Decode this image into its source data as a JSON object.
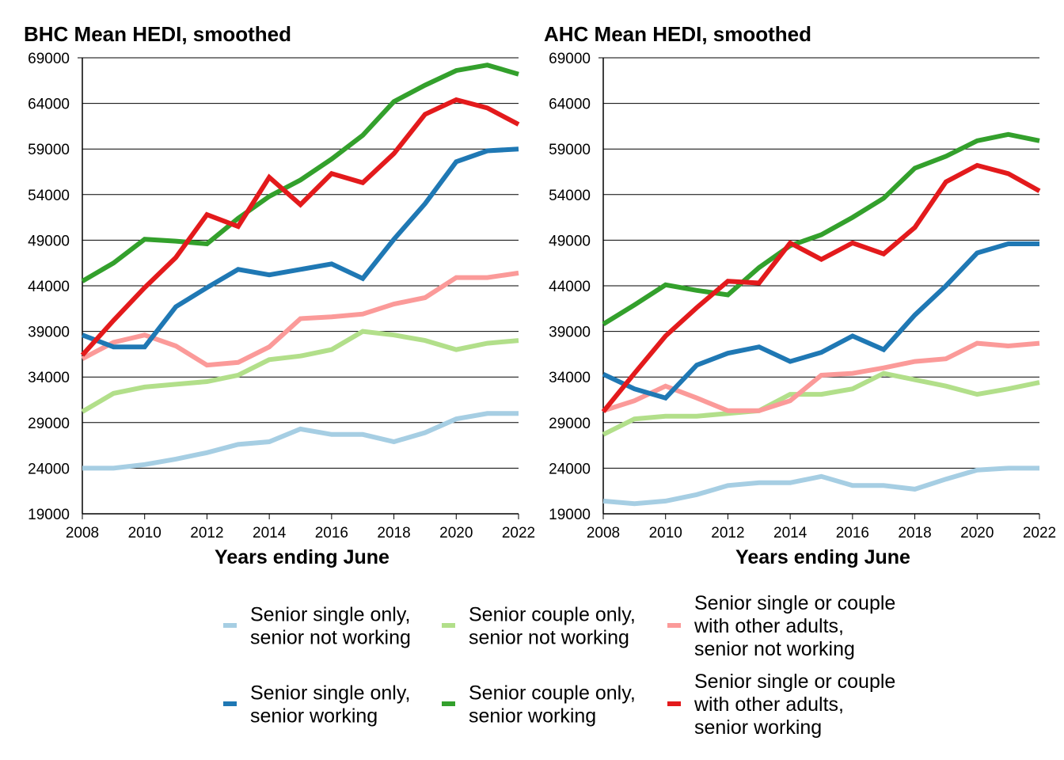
{
  "chart_data": [
    {
      "type": "line",
      "title": "BHC Mean HEDI, smoothed",
      "xlabel": "Years ending June",
      "ylabel": "",
      "xlim": [
        2008,
        2022
      ],
      "ylim": [
        19000,
        69000
      ],
      "x_ticks": [
        "2008",
        "2010",
        "2012",
        "2014",
        "2016",
        "2018",
        "2020",
        "2022"
      ],
      "y_ticks": [
        "19000",
        "24000",
        "29000",
        "34000",
        "39000",
        "44000",
        "49000",
        "54000",
        "59000",
        "64000",
        "69000"
      ],
      "grid": true,
      "x": [
        2008,
        2009,
        2010,
        2011,
        2012,
        2013,
        2014,
        2015,
        2016,
        2017,
        2018,
        2019,
        2020,
        2021,
        2022
      ],
      "series": [
        {
          "name": "Senior single only, senior not working",
          "color": "#a6cee3",
          "values": [
            24000,
            24000,
            24400,
            25000,
            25700,
            26600,
            26900,
            28300,
            27700,
            27700,
            26900,
            27900,
            29400,
            30000,
            30000
          ]
        },
        {
          "name": "Senior couple only, senior not working",
          "color": "#b2df8a",
          "values": [
            30200,
            32200,
            32900,
            33200,
            33500,
            34200,
            35900,
            36300,
            37000,
            39000,
            38600,
            38000,
            37000,
            37700,
            38000
          ]
        },
        {
          "name": "Senior single or couple with other adults, senior not working",
          "color": "#fb9a99",
          "values": [
            36000,
            37800,
            38600,
            37400,
            35300,
            35600,
            37300,
            40400,
            40600,
            40900,
            42000,
            42700,
            44900,
            44900,
            45400
          ]
        },
        {
          "name": "Senior single only, senior working",
          "color": "#1f78b4",
          "values": [
            38600,
            37300,
            37300,
            41700,
            43800,
            45800,
            45200,
            45800,
            46400,
            44800,
            49100,
            53000,
            57600,
            58800,
            59000
          ]
        },
        {
          "name": "Senior couple only, senior working",
          "color": "#33a02c",
          "values": [
            44500,
            46500,
            49100,
            48900,
            48600,
            51400,
            53800,
            55600,
            57900,
            60500,
            64200,
            66000,
            67600,
            68200,
            67200
          ]
        },
        {
          "name": "Senior single or couple with other adults, senior working",
          "color": "#e31a1c",
          "values": [
            36400,
            40200,
            43800,
            47100,
            51800,
            50500,
            55900,
            52900,
            56300,
            55300,
            58500,
            62800,
            64400,
            63500,
            61700
          ]
        }
      ]
    },
    {
      "type": "line",
      "title": "AHC Mean HEDI, smoothed",
      "xlabel": "Years ending June",
      "ylabel": "",
      "xlim": [
        2008,
        2022
      ],
      "ylim": [
        19000,
        69000
      ],
      "x_ticks": [
        "2008",
        "2010",
        "2012",
        "2014",
        "2016",
        "2018",
        "2020",
        "2022"
      ],
      "y_ticks": [
        "19000",
        "24000",
        "29000",
        "34000",
        "39000",
        "44000",
        "49000",
        "54000",
        "59000",
        "64000",
        "69000"
      ],
      "grid": true,
      "x": [
        2008,
        2009,
        2010,
        2011,
        2012,
        2013,
        2014,
        2015,
        2016,
        2017,
        2018,
        2019,
        2020,
        2021,
        2022
      ],
      "series": [
        {
          "name": "Senior single only, senior not working",
          "color": "#a6cee3",
          "values": [
            20400,
            20100,
            20400,
            21100,
            22100,
            22400,
            22400,
            23100,
            22100,
            22100,
            21700,
            22800,
            23800,
            24000,
            24000
          ]
        },
        {
          "name": "Senior couple only, senior not working",
          "color": "#b2df8a",
          "values": [
            27700,
            29400,
            29700,
            29700,
            30000,
            30300,
            32100,
            32100,
            32700,
            34400,
            33700,
            33000,
            32100,
            32700,
            33400
          ]
        },
        {
          "name": "Senior single or couple with other adults, senior not working",
          "color": "#fb9a99",
          "values": [
            30300,
            31400,
            33000,
            31700,
            30300,
            30300,
            31400,
            34200,
            34400,
            35000,
            35700,
            36000,
            37700,
            37400,
            37700
          ]
        },
        {
          "name": "Senior single only, senior working",
          "color": "#1f78b4",
          "values": [
            34300,
            32700,
            31700,
            35300,
            36600,
            37300,
            35700,
            36700,
            38500,
            37000,
            40800,
            44000,
            47600,
            48600,
            48600
          ]
        },
        {
          "name": "Senior couple only, senior working",
          "color": "#33a02c",
          "values": [
            39800,
            41900,
            44100,
            43500,
            43000,
            46000,
            48400,
            49600,
            51500,
            53600,
            56900,
            58200,
            59900,
            60600,
            59900
          ]
        },
        {
          "name": "Senior single or couple with other adults, senior working",
          "color": "#e31a1c",
          "values": [
            30200,
            34400,
            38500,
            41600,
            44500,
            44300,
            48700,
            46900,
            48700,
            47500,
            50400,
            55400,
            57200,
            56300,
            54400
          ]
        }
      ]
    }
  ],
  "legend": {
    "placement": "bottom",
    "entries": [
      {
        "lines": [
          "Senior single only,",
          "senior not working"
        ],
        "color": "#a6cee3"
      },
      {
        "lines": [
          "Senior couple only,",
          "senior not working"
        ],
        "color": "#b2df8a"
      },
      {
        "lines": [
          "Senior single or couple",
          "with other adults,",
          "senior not working"
        ],
        "color": "#fb9a99"
      },
      {
        "lines": [
          "Senior single only,",
          "senior working"
        ],
        "color": "#1f78b4"
      },
      {
        "lines": [
          "Senior couple only,",
          "senior working"
        ],
        "color": "#33a02c"
      },
      {
        "lines": [
          "Senior single or couple",
          "with other adults,",
          "senior working"
        ],
        "color": "#e31a1c"
      }
    ]
  }
}
